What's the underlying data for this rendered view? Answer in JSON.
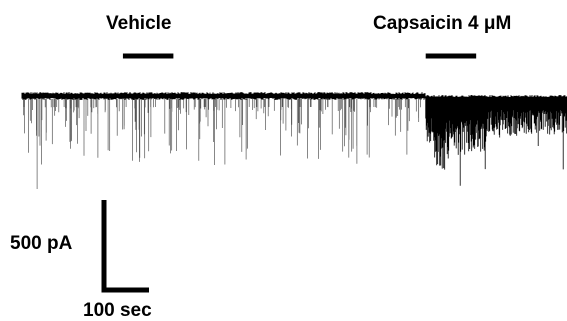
{
  "chart_data": {
    "type": "line",
    "trace": "whole-cell current recording (downward inward events)",
    "treatments": [
      {
        "label": "Vehicle",
        "start_sec": 100,
        "end_sec": 150
      },
      {
        "label": "Capsaicin 4 μM",
        "start_sec": 400,
        "end_sec": 450
      }
    ],
    "scale_bar": {
      "amplitude_label": "500 pA",
      "amplitude_value": 500,
      "amplitude_unit": "pA",
      "time_label": "100 sec",
      "time_value": 100,
      "time_unit": "sec"
    },
    "recording_duration_sec": 540,
    "baseline_pA": 0,
    "colors": {
      "trace": "#000000",
      "background": "#ffffff"
    }
  }
}
